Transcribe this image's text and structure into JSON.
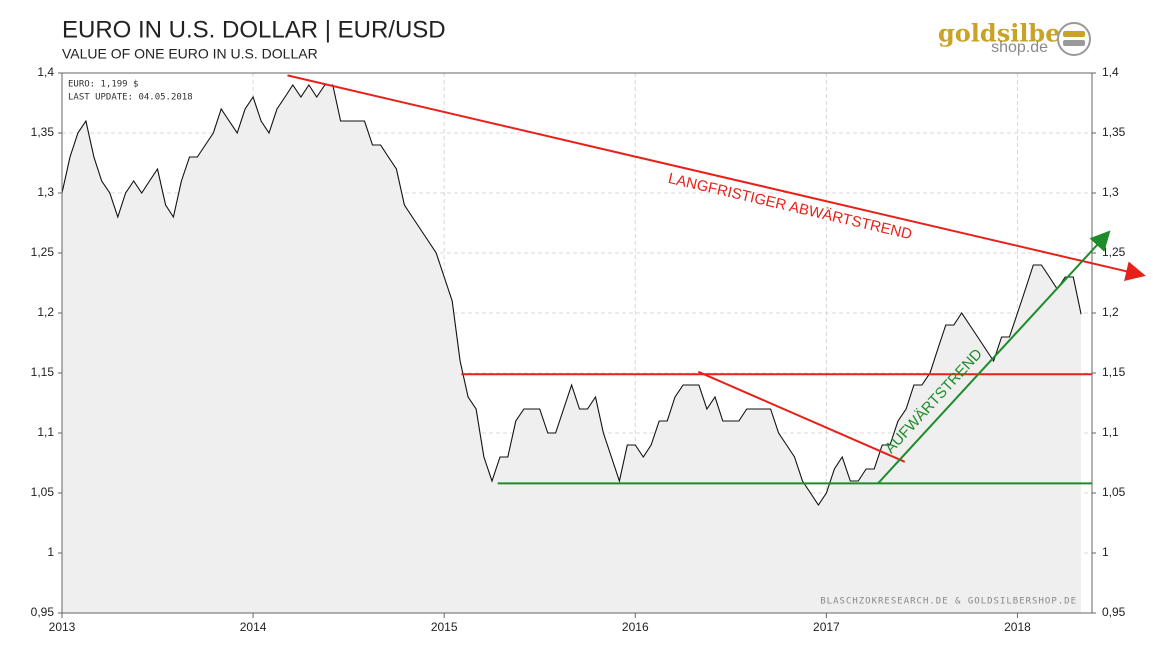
{
  "chart_data": {
    "type": "line",
    "title": "EURO IN U.S. DOLLAR | EUR/USD",
    "subtitle": "VALUE OF ONE EURO IN U.S. DOLLAR",
    "info": [
      "EURO: 1,199 $",
      "LAST UPDATE: 04.05.2018"
    ],
    "source": "BLASCHZOKRESEARCH.DE & GOLDSILBERSHOP.DE",
    "logo": [
      "goldsilber",
      "shop.de"
    ],
    "series": [
      {
        "name": "EUR/USD",
        "color": "#111111",
        "fill": "#efefef",
        "x": [
          2013,
          2013.042,
          2013.083,
          2013.125,
          2013.167,
          2013.208,
          2013.25,
          2013.292,
          2013.333,
          2013.375,
          2013.417,
          2013.458,
          2013.5,
          2013.542,
          2013.583,
          2013.625,
          2013.667,
          2013.708,
          2013.75,
          2013.792,
          2013.833,
          2013.875,
          2013.917,
          2013.958,
          2014,
          2014.042,
          2014.083,
          2014.125,
          2014.167,
          2014.208,
          2014.25,
          2014.292,
          2014.333,
          2014.375,
          2014.417,
          2014.458,
          2014.5,
          2014.542,
          2014.583,
          2014.625,
          2014.667,
          2014.708,
          2014.75,
          2014.792,
          2014.833,
          2014.875,
          2014.917,
          2014.958,
          2015,
          2015.042,
          2015.083,
          2015.125,
          2015.167,
          2015.208,
          2015.25,
          2015.292,
          2015.333,
          2015.375,
          2015.417,
          2015.458,
          2015.5,
          2015.542,
          2015.583,
          2015.625,
          2015.667,
          2015.708,
          2015.75,
          2015.792,
          2015.833,
          2015.875,
          2015.917,
          2015.958,
          2016,
          2016.042,
          2016.083,
          2016.125,
          2016.167,
          2016.208,
          2016.25,
          2016.292,
          2016.333,
          2016.375,
          2016.417,
          2016.458,
          2016.5,
          2016.542,
          2016.583,
          2016.625,
          2016.667,
          2016.708,
          2016.75,
          2016.792,
          2016.833,
          2016.875,
          2016.917,
          2016.958,
          2017,
          2017.042,
          2017.083,
          2017.125,
          2017.167,
          2017.208,
          2017.25,
          2017.292,
          2017.333,
          2017.375,
          2017.417,
          2017.458,
          2017.5,
          2017.542,
          2017.583,
          2017.625,
          2017.667,
          2017.708,
          2017.75,
          2017.792,
          2017.833,
          2017.875,
          2017.917,
          2017.958,
          2018,
          2018.042,
          2018.083,
          2018.125,
          2018.167,
          2018.208,
          2018.25,
          2018.292,
          2018.333
        ],
        "values": [
          1.3,
          1.33,
          1.35,
          1.36,
          1.33,
          1.31,
          1.3,
          1.28,
          1.3,
          1.31,
          1.3,
          1.31,
          1.32,
          1.29,
          1.28,
          1.31,
          1.33,
          1.33,
          1.34,
          1.35,
          1.37,
          1.36,
          1.35,
          1.37,
          1.38,
          1.36,
          1.35,
          1.37,
          1.38,
          1.39,
          1.38,
          1.39,
          1.38,
          1.39,
          1.39,
          1.36,
          1.36,
          1.36,
          1.36,
          1.34,
          1.34,
          1.33,
          1.32,
          1.29,
          1.28,
          1.27,
          1.26,
          1.25,
          1.23,
          1.21,
          1.16,
          1.13,
          1.12,
          1.08,
          1.06,
          1.08,
          1.08,
          1.11,
          1.12,
          1.12,
          1.12,
          1.1,
          1.1,
          1.12,
          1.14,
          1.12,
          1.12,
          1.13,
          1.1,
          1.08,
          1.06,
          1.09,
          1.09,
          1.08,
          1.09,
          1.11,
          1.11,
          1.13,
          1.14,
          1.14,
          1.14,
          1.12,
          1.13,
          1.11,
          1.11,
          1.11,
          1.12,
          1.12,
          1.12,
          1.12,
          1.1,
          1.09,
          1.08,
          1.06,
          1.05,
          1.04,
          1.05,
          1.07,
          1.08,
          1.06,
          1.06,
          1.07,
          1.07,
          1.09,
          1.09,
          1.11,
          1.12,
          1.14,
          1.14,
          1.15,
          1.17,
          1.19,
          1.19,
          1.2,
          1.19,
          1.18,
          1.17,
          1.16,
          1.18,
          1.18,
          1.2,
          1.22,
          1.24,
          1.24,
          1.23,
          1.22,
          1.23,
          1.23,
          1.199
        ]
      }
    ],
    "trendlines": [
      {
        "x": [
          2014.18,
          2018.59
        ],
        "y": [
          1.398,
          1.234
        ],
        "color": "#e8201a",
        "arrow": true,
        "label": "LANGFRISTIGER ABWÄRTSTREND"
      },
      {
        "x": [
          2015.09,
          2018.39
        ],
        "y": [
          1.149,
          1.149
        ],
        "color": "#e8201a"
      },
      {
        "x": [
          2016.33,
          2017.41
        ],
        "y": [
          1.151,
          1.076
        ],
        "color": "#e8201a"
      },
      {
        "x": [
          2015.28,
          2018.39
        ],
        "y": [
          1.058,
          1.058
        ],
        "color": "#1e8c2a"
      },
      {
        "x": [
          2017.27,
          2018.43
        ],
        "y": [
          1.058,
          1.259
        ],
        "color": "#1e8c2a",
        "arrow": true,
        "label": "AUFWÄRTSTREND"
      }
    ],
    "xlim": [
      2013,
      2018.39
    ],
    "xticks": [
      2013,
      2014,
      2015,
      2016,
      2017,
      2018
    ],
    "ylim": [
      0.95,
      1.4
    ],
    "yticks": [
      {
        "value": 0.95,
        "label": "0,95"
      },
      1,
      {
        "value": 1.05,
        "label": "1,05"
      },
      {
        "value": 1.1,
        "label": "1,1"
      },
      {
        "value": 1.15,
        "label": "1,15"
      },
      {
        "value": 1.2,
        "label": "1,2"
      },
      {
        "value": 1.25,
        "label": "1,25"
      },
      {
        "value": 1.3,
        "label": "1,3"
      },
      {
        "value": 1.35,
        "label": "1,35"
      },
      {
        "value": 1.4,
        "label": "1,4"
      }
    ],
    "y2lim": [
      0.95,
      1.4
    ],
    "y2ticks": [
      {
        "value": 0.95,
        "label": "0,95"
      },
      1,
      {
        "value": 1.05,
        "label": "1,05"
      },
      {
        "value": 1.1,
        "label": "1,1"
      },
      {
        "value": 1.15,
        "label": "1,15"
      },
      {
        "value": 1.2,
        "label": "1,2"
      },
      {
        "value": 1.25,
        "label": "1,25"
      },
      {
        "value": 1.3,
        "label": "1,3"
      },
      {
        "value": 1.35,
        "label": "1,35"
      },
      {
        "value": 1.4,
        "label": "1,4"
      }
    ],
    "grid": true
  }
}
